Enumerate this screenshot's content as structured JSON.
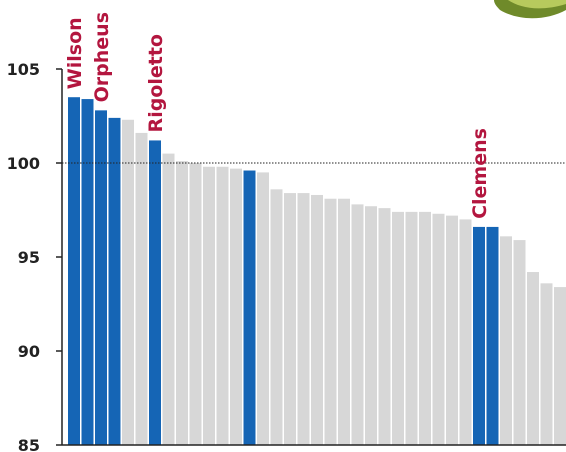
{
  "chart_data": {
    "type": "bar",
    "title": "",
    "xlabel": "",
    "ylabel": "",
    "ylim": [
      85,
      105
    ],
    "yticks": [
      85,
      90,
      95,
      100,
      105
    ],
    "reference_line": 100,
    "values": [
      103.5,
      103.4,
      102.8,
      102.4,
      102.3,
      101.6,
      101.2,
      100.5,
      100.1,
      100.0,
      99.8,
      99.8,
      99.7,
      99.6,
      99.5,
      98.6,
      98.4,
      98.4,
      98.3,
      98.1,
      98.1,
      97.8,
      97.7,
      97.6,
      97.4,
      97.4,
      97.4,
      97.3,
      97.2,
      97.0,
      96.6,
      96.6,
      96.1,
      95.9,
      94.2,
      93.6,
      93.4
    ],
    "highlighted": [
      0,
      1,
      2,
      3,
      6,
      13,
      30,
      31
    ],
    "annotations": [
      {
        "label": "Wilson",
        "bar": 0
      },
      {
        "label": "Orpheus",
        "bar": 2
      },
      {
        "label": "Rigoletto",
        "bar": 6
      },
      {
        "label": "Clemens",
        "bar": 30
      }
    ]
  },
  "colors": {
    "highlight": "#1565b5",
    "default": "#d7d7d7",
    "annotation": "#b3163f",
    "axis": "#222222",
    "reference": "#222222",
    "leaf": "#6f8a2a"
  }
}
